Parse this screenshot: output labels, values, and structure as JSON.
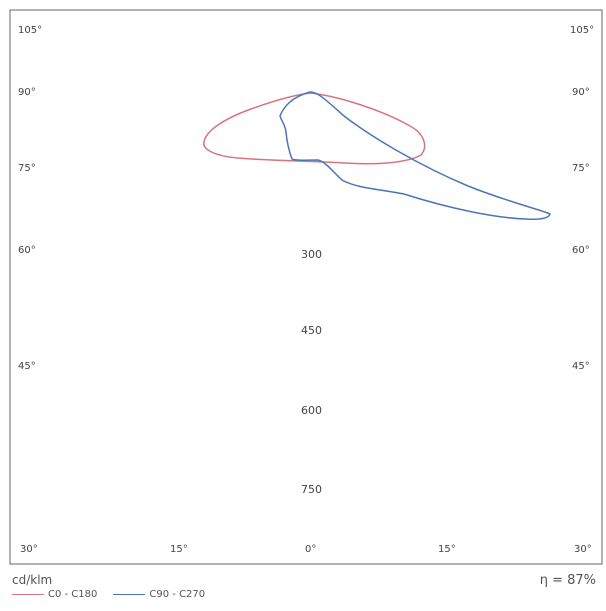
{
  "chart_data": {
    "type": "polar_line",
    "unit": "cd/klm",
    "efficiency_label": "η = 87%",
    "angle_labels_left": [
      "105°",
      "90°",
      "75°",
      "60°",
      "45°",
      "30°"
    ],
    "angle_labels_right": [
      "105°",
      "90°",
      "75°",
      "60°",
      "45°",
      "30°"
    ],
    "bottom_labels": [
      "15°",
      "0°",
      "15°"
    ],
    "radial_labels": [
      "300",
      "450",
      "600",
      "750"
    ],
    "series": [
      {
        "name": "C0 - C180",
        "color": "#d9737e"
      },
      {
        "name": "C90 - C270",
        "color": "#4a76b8"
      }
    ]
  }
}
